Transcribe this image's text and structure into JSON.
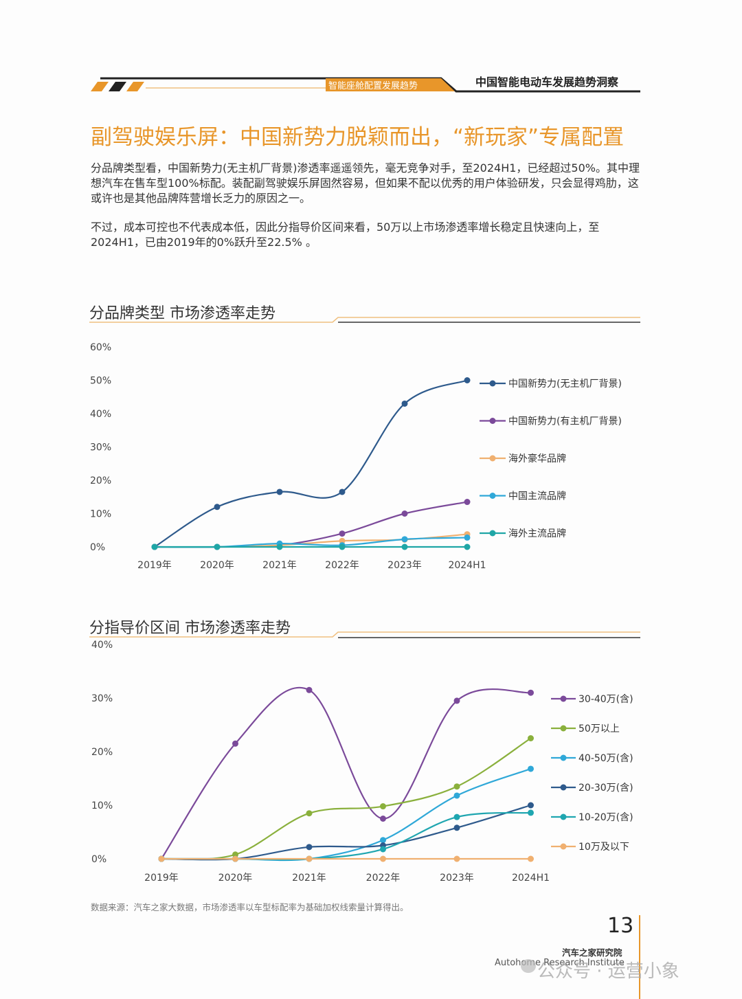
{
  "header": {
    "section_tag": "智能座舱配置发展趋势",
    "report_name": "中国智能电动车发展趋势洞察"
  },
  "title": "副驾驶娱乐屏：中国新势力脱颖而出，“新玩家”专属配置",
  "paragraphs": [
    "分品牌类型看，中国新势力(无主机厂背景)渗透率遥遥领先，毫无竞争对手，至2024H1，已经超过50%。其中理想汽车在售车型100%标配。装配副驾驶娱乐屏固然容易，但如果不配以优秀的用户体验研发，只会显得鸡肋，这或许也是其他品牌阵营增长乏力的原因之一。",
    "不过，成本可控也不代表成本低，因此分指导价区间来看，50万以上市场渗透率增长稳定且快速向上，至2024H1，已由2019年的0%跃升至22.5% 。"
  ],
  "chart_data": [
    {
      "type": "line",
      "title": "分品牌类型  市场渗透率走势",
      "xlabel": "",
      "ylabel": "",
      "categories": [
        "2019年",
        "2020年",
        "2021年",
        "2022年",
        "2023年",
        "2024H1"
      ],
      "yticks": [
        "0%",
        "10%",
        "20%",
        "30%",
        "40%",
        "50%",
        "60%"
      ],
      "ylim": [
        0,
        60
      ],
      "grid": false,
      "legend": "right",
      "series": [
        {
          "name": "中国新势力(无主机厂背景)",
          "color": "#2e5a8c",
          "values": [
            0,
            12,
            16.5,
            16.5,
            43,
            50
          ]
        },
        {
          "name": "中国新势力(有主机厂背景)",
          "color": "#7b4a9a",
          "values": [
            0,
            0,
            0.5,
            4,
            10,
            13.5
          ]
        },
        {
          "name": "海外豪华品牌",
          "color": "#f0b070",
          "values": [
            0,
            0,
            0.5,
            1.8,
            2.2,
            3.8
          ]
        },
        {
          "name": "中国主流品牌",
          "color": "#2fa8d8",
          "values": [
            0,
            0,
            1,
            0.5,
            2.3,
            2.8
          ]
        },
        {
          "name": "海外主流品牌",
          "color": "#1fa6a6",
          "values": [
            0,
            0,
            0,
            0,
            0,
            0
          ]
        }
      ]
    },
    {
      "type": "line",
      "title": "分指导价区间  市场渗透率走势",
      "xlabel": "",
      "ylabel": "",
      "categories": [
        "2019年",
        "2020年",
        "2021年",
        "2022年",
        "2023年",
        "2024H1"
      ],
      "yticks": [
        "0%",
        "10%",
        "20%",
        "30%",
        "40%"
      ],
      "ylim": [
        0,
        40
      ],
      "grid": false,
      "legend": "right",
      "series": [
        {
          "name": "30-40万(含)",
          "color": "#7b4a9a",
          "values": [
            0,
            21.5,
            31.5,
            7.5,
            29.5,
            31
          ]
        },
        {
          "name": "50万以上",
          "color": "#8ab03c",
          "values": [
            0,
            0.8,
            8.5,
            9.8,
            13.5,
            22.5
          ]
        },
        {
          "name": "40-50万(含)",
          "color": "#2fa8d8",
          "values": [
            0,
            0,
            0,
            3.5,
            11.8,
            16.8
          ]
        },
        {
          "name": "20-30万(含)",
          "color": "#2e5a8c",
          "values": [
            0,
            0,
            2.2,
            2.5,
            5.8,
            10
          ]
        },
        {
          "name": "10-20万(含)",
          "color": "#1fa6b0",
          "values": [
            0,
            0,
            0,
            1.8,
            7.8,
            8.6
          ]
        },
        {
          "name": "10万及以下",
          "color": "#f0b070",
          "values": [
            0,
            0,
            0,
            0,
            0,
            0
          ]
        }
      ]
    }
  ],
  "source_note": "数据来源：汽车之家大数据，市场渗透率以车型标配率为基础加权线索量计算得出。",
  "page_number": "13",
  "footer": {
    "org_cn": "汽车之家研究院",
    "org_en": "Autohome Research Institute",
    "watermark": "公众号 · 运营小象"
  }
}
